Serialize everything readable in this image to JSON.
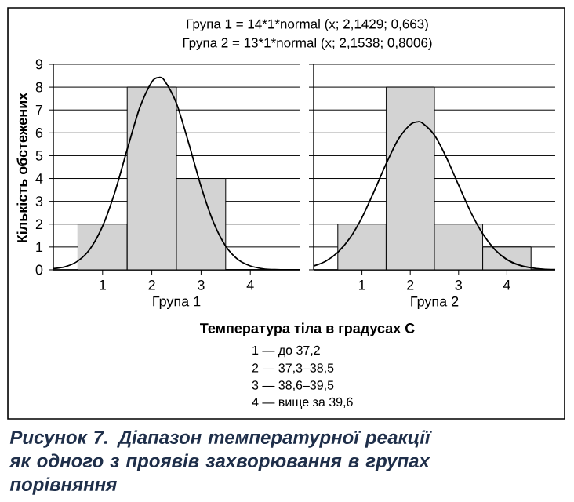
{
  "chart_data": [
    {
      "type": "histogram",
      "title": "Група 1 = 14*1*normal (x; 2,1429; 0,663)",
      "xlabel": "Група 1",
      "ylabel": "Кількість обстежених",
      "bins": [
        0.5,
        1.5,
        2.5,
        3.5,
        4.5
      ],
      "values": [
        2,
        8,
        4,
        0
      ],
      "color": "#d3d3d3",
      "series": [
        {
          "type": "line",
          "color": "#000000",
          "x": [
            0,
            0.25,
            0.5,
            0.75,
            1,
            1.25,
            1.5,
            1.75,
            2,
            2.1429,
            2.25,
            2.5,
            2.75,
            3,
            3.25,
            3.5,
            3.75,
            4,
            4.25,
            4.5,
            5
          ],
          "values": [
            0.05,
            0.14,
            0.39,
            0.93,
            1.91,
            3.4,
            5.27,
            7.07,
            8.23,
            8.42,
            8.31,
            7.29,
            5.54,
            3.65,
            2.09,
            1.04,
            0.45,
            0.17,
            0.05,
            0.01,
            0
          ]
        }
      ],
      "xlim": [
        0,
        5
      ],
      "xticks": [
        1,
        2,
        3,
        4
      ],
      "ylim": [
        0,
        9
      ],
      "yticks": [
        0,
        1,
        2,
        3,
        4,
        5,
        6,
        7,
        8,
        9
      ],
      "grid": "y",
      "annotations": [
        "Температура тіла в градусах С",
        "1 — до 37,2",
        "2 — 37,3–38,5",
        "3 — 38,6–39,5",
        "4 — вище за 39,6",
        "Рисунок 7. Діапазон температурної реакції як одного з проявів захворювання в групах порівняння"
      ]
    },
    {
      "type": "histogram",
      "title": "Група 2 = 13*1*normal (x; 2,1538; 0,8006)",
      "xlabel": "Група 2",
      "bins": [
        0.5,
        1.5,
        2.5,
        3.5,
        4.5
      ],
      "values": [
        2,
        8,
        2,
        1
      ],
      "color": "#d3d3d3",
      "series": [
        {
          "type": "line",
          "color": "#000000",
          "x": [
            0,
            0.25,
            0.5,
            0.75,
            1,
            1.25,
            1.5,
            1.75,
            2,
            2.1538,
            2.25,
            2.5,
            2.75,
            3,
            3.25,
            3.5,
            3.75,
            4,
            4.25,
            4.5,
            4.75,
            5
          ],
          "values": [
            0.17,
            0.38,
            0.77,
            1.39,
            2.29,
            3.43,
            4.64,
            5.71,
            6.36,
            6.48,
            6.43,
            5.9,
            4.91,
            3.71,
            2.54,
            1.58,
            0.89,
            0.45,
            0.21,
            0.09,
            0.03,
            0.01
          ]
        }
      ],
      "xlim": [
        0,
        5
      ],
      "xticks": [
        1,
        2,
        3,
        4
      ],
      "ylim": [
        0,
        9
      ],
      "yticks": [
        0,
        1,
        2,
        3,
        4,
        5,
        6,
        7,
        8,
        9
      ],
      "grid": "y",
      "tick_labels": "x"
    }
  ]
}
